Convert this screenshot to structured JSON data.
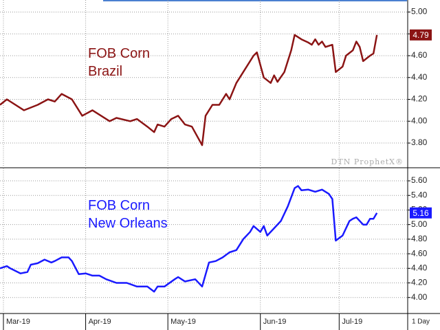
{
  "chart_data": [
    {
      "type": "line",
      "title_lines": [
        "FOB Corn",
        "Brazil"
      ],
      "watermark": "DTN ProphetX®",
      "series": [
        {
          "name": "FOB Corn Brazil",
          "color": "#8b1414",
          "x": [
            0,
            2,
            7,
            11,
            14,
            16,
            18,
            21,
            24,
            27,
            32,
            34,
            38,
            40,
            43,
            45,
            46,
            48,
            50,
            52,
            54,
            56,
            59,
            60,
            62,
            64,
            66,
            67,
            69,
            71,
            74,
            75,
            77,
            79,
            80,
            81,
            83,
            85,
            86,
            88,
            90,
            91,
            92,
            93,
            94,
            95,
            97,
            98,
            100,
            101,
            103,
            104,
            105,
            106,
            108,
            109,
            110
          ],
          "values": [
            4.15,
            4.2,
            4.1,
            4.15,
            4.2,
            4.18,
            4.25,
            4.2,
            4.05,
            4.1,
            4.0,
            4.03,
            4.0,
            4.02,
            3.95,
            3.9,
            3.97,
            3.95,
            4.02,
            4.05,
            3.97,
            3.95,
            3.78,
            4.05,
            4.15,
            4.15,
            4.25,
            4.2,
            4.35,
            4.45,
            4.6,
            4.63,
            4.4,
            4.35,
            4.42,
            4.36,
            4.45,
            4.65,
            4.79,
            4.75,
            4.72,
            4.7,
            4.75,
            4.7,
            4.73,
            4.68,
            4.7,
            4.45,
            4.5,
            4.6,
            4.65,
            4.73,
            4.68,
            4.55,
            4.6,
            4.62,
            4.79
          ]
        }
      ],
      "xlim": [
        0,
        119
      ],
      "ylim": [
        3.58,
        5.11
      ],
      "yticks": [
        {
          "value": 3.8,
          "label": "3.80"
        },
        {
          "value": 4.0,
          "label": "4.00"
        },
        {
          "value": 4.2,
          "label": "4.20"
        },
        {
          "value": 4.4,
          "label": "4.40"
        },
        {
          "value": 4.6,
          "label": "4.60"
        },
        {
          "value": 4.8,
          "label": "4.80"
        },
        {
          "value": 5.0,
          "label": "5.00"
        }
      ],
      "grid": true
    },
    {
      "type": "line",
      "title_lines": [
        "FOB Corn",
        "New Orleans"
      ],
      "period": "1 Day",
      "series": [
        {
          "name": "FOB Corn New Orleans",
          "color": "#1a1aff",
          "x": [
            0,
            2,
            3,
            6,
            8,
            9,
            11,
            13,
            15,
            16,
            18,
            20,
            21,
            23,
            25,
            27,
            29,
            31,
            34,
            37,
            40,
            43,
            45,
            46,
            48,
            51,
            52,
            54,
            57,
            59,
            61,
            63,
            65,
            67,
            69,
            71,
            73,
            74,
            76,
            77,
            78,
            80,
            82,
            84,
            86,
            87,
            88,
            90,
            92,
            94,
            96,
            97,
            98,
            100,
            102,
            103,
            104,
            106,
            107,
            108,
            109,
            110
          ],
          "values": [
            4.4,
            4.43,
            4.4,
            4.33,
            4.35,
            4.45,
            4.47,
            4.52,
            4.48,
            4.5,
            4.55,
            4.55,
            4.5,
            4.32,
            4.33,
            4.3,
            4.3,
            4.25,
            4.2,
            4.2,
            4.15,
            4.15,
            4.08,
            4.15,
            4.15,
            4.25,
            4.28,
            4.22,
            4.25,
            4.15,
            4.48,
            4.5,
            4.55,
            4.62,
            4.65,
            4.8,
            4.9,
            4.98,
            4.9,
            4.98,
            4.85,
            4.95,
            5.05,
            5.25,
            5.5,
            5.53,
            5.47,
            5.48,
            5.45,
            5.48,
            5.42,
            5.35,
            4.78,
            4.85,
            5.05,
            5.08,
            5.1,
            5.0,
            5.0,
            5.08,
            5.08,
            5.16
          ]
        }
      ],
      "xlim": [
        0,
        119
      ],
      "ylim": [
        3.79,
        5.77
      ],
      "yticks": [
        {
          "value": 4.0,
          "label": "4.00"
        },
        {
          "value": 4.2,
          "label": "4.20"
        },
        {
          "value": 4.4,
          "label": "4.40"
        },
        {
          "value": 4.6,
          "label": "4.60"
        },
        {
          "value": 4.8,
          "label": "4.80"
        },
        {
          "value": 5.0,
          "label": "5.00"
        },
        {
          "value": 5.2,
          "label": "5.20"
        },
        {
          "value": 5.4,
          "label": "5.40"
        },
        {
          "value": 5.6,
          "label": "5.60"
        }
      ],
      "xticks": [
        {
          "value": 1,
          "label": "Mar-19"
        },
        {
          "value": 25,
          "label": "Apr-19"
        },
        {
          "value": 49,
          "label": "May-19"
        },
        {
          "value": 76,
          "label": "Jun-19"
        },
        {
          "value": 99,
          "label": "Jul-19"
        }
      ],
      "grid": true
    }
  ]
}
